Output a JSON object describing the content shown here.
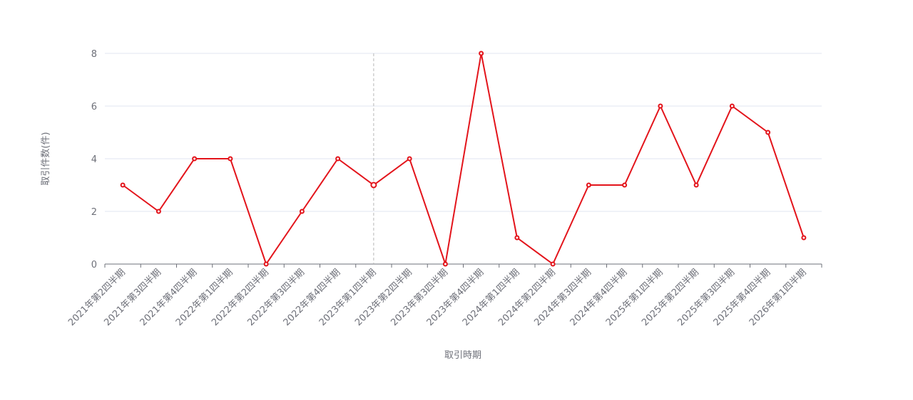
{
  "chart_data": {
    "type": "line",
    "x_label": "取引時期",
    "y_label": "取引件数(件)",
    "categories": [
      "2021年第2四半期",
      "2021年第3四半期",
      "2021年第4四半期",
      "2022年第1四半期",
      "2022年第2四半期",
      "2022年第3四半期",
      "2022年第4四半期",
      "2023年第1四半期",
      "2023年第2四半期",
      "2023年第3四半期",
      "2023年第4四半期",
      "2024年第1四半期",
      "2024年第2四半期",
      "2024年第3四半期",
      "2024年第4四半期",
      "2025年第1四半期",
      "2025年第2四半期",
      "2025年第3四半期",
      "2025年第4四半期",
      "2026年第1四半期"
    ],
    "series": [
      {
        "name": "取引件数",
        "color": "#e3141b",
        "values": [
          3,
          2,
          4,
          4,
          0,
          2,
          4,
          3,
          4,
          0,
          8,
          1,
          0,
          3,
          3,
          6,
          3,
          6,
          5,
          1
        ]
      }
    ],
    "ylim": [
      0,
      8
    ],
    "yticks": [
      0,
      2,
      4,
      6,
      8
    ],
    "grid": true
  }
}
